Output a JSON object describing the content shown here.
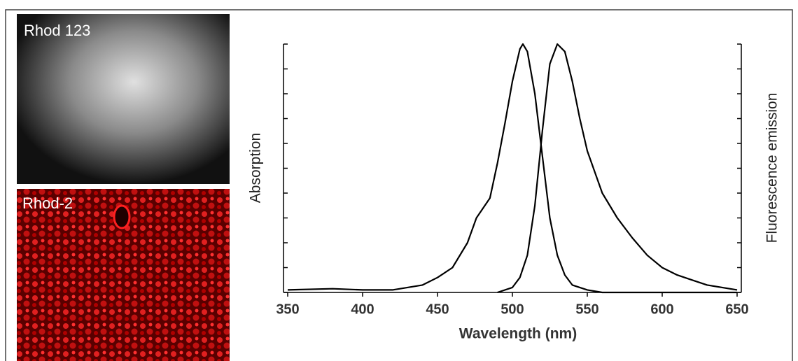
{
  "images": [
    {
      "label": "Rhod 123"
    },
    {
      "label": "Rhod-2"
    }
  ],
  "chart_data": {
    "type": "line",
    "xlabel": "Wavelength (nm)",
    "ylabel": "Absorption",
    "y2label": "Fluorescence emission",
    "xlim": [
      350,
      650
    ],
    "xticks": [
      350,
      400,
      450,
      500,
      550,
      600,
      650
    ],
    "ylim": [
      0,
      1
    ],
    "yticks": [
      0,
      0.1,
      0.2,
      0.3,
      0.4,
      0.5,
      0.6,
      0.7,
      0.8,
      0.9,
      1
    ],
    "y2lim": [
      0,
      1
    ],
    "y2ticks": [
      0,
      0.1,
      0.2,
      0.3,
      0.4,
      0.5,
      0.6,
      0.7,
      0.8,
      0.9,
      1
    ],
    "series": [
      {
        "name": "Absorption",
        "color": "#000000",
        "x": [
          350,
          380,
          400,
          420,
          440,
          450,
          460,
          470,
          476,
          485,
          490,
          495,
          500,
          505,
          507,
          510,
          515,
          520,
          525,
          530,
          535,
          540,
          550,
          560,
          650
        ],
        "values": [
          0.01,
          0.015,
          0.01,
          0.01,
          0.03,
          0.06,
          0.1,
          0.2,
          0.3,
          0.38,
          0.52,
          0.68,
          0.85,
          0.98,
          1.0,
          0.97,
          0.8,
          0.55,
          0.3,
          0.15,
          0.07,
          0.03,
          0.01,
          0,
          0
        ]
      },
      {
        "name": "Fluorescence emission",
        "color": "#000000",
        "axis": "y2",
        "x": [
          490,
          500,
          505,
          510,
          515,
          520,
          525,
          530,
          535,
          540,
          545,
          550,
          560,
          570,
          580,
          590,
          600,
          610,
          620,
          630,
          650
        ],
        "values": [
          0,
          0.02,
          0.06,
          0.15,
          0.35,
          0.65,
          0.92,
          1.0,
          0.97,
          0.85,
          0.7,
          0.57,
          0.4,
          0.3,
          0.22,
          0.15,
          0.1,
          0.07,
          0.05,
          0.03,
          0.01
        ]
      }
    ]
  }
}
